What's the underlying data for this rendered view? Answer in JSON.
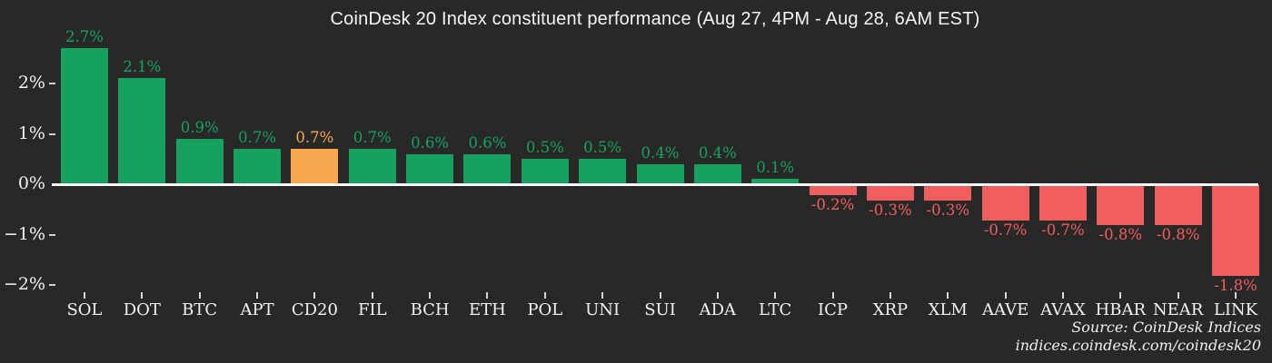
{
  "title": "CoinDesk 20 Index constituent performance (Aug 27, 4PM - Aug 28, 6AM EST)",
  "source": {
    "line1": "Source: CoinDesk Indices",
    "line2": "indices.coindesk.com/coindesk20"
  },
  "colors": {
    "positive": "#16a15e",
    "negative": "#f15e5e",
    "highlight": "#f9a84d",
    "background": "#282828",
    "text": "#f2f2f2",
    "zero_line": "#fafafa"
  },
  "chart_data": {
    "type": "bar",
    "title": "CoinDesk 20 Index constituent performance (Aug 27, 4PM - Aug 28, 6AM EST)",
    "categories": [
      "SOL",
      "DOT",
      "BTC",
      "APT",
      "CD20",
      "FIL",
      "BCH",
      "ETH",
      "POL",
      "UNI",
      "SUI",
      "ADA",
      "LTC",
      "ICP",
      "XRP",
      "XLM",
      "AAVE",
      "AVAX",
      "HBAR",
      "NEAR",
      "LINK"
    ],
    "values": [
      2.7,
      2.1,
      0.9,
      0.7,
      0.7,
      0.7,
      0.6,
      0.6,
      0.5,
      0.5,
      0.4,
      0.4,
      0.1,
      -0.2,
      -0.3,
      -0.3,
      -0.7,
      -0.7,
      -0.8,
      -0.8,
      -1.8
    ],
    "value_labels": [
      "2.7%",
      "2.1%",
      "0.9%",
      "0.7%",
      "0.7%",
      "0.7%",
      "0.6%",
      "0.6%",
      "0.5%",
      "0.5%",
      "0.4%",
      "0.4%",
      "0.1%",
      "-0.2%",
      "-0.3%",
      "-0.3%",
      "-0.7%",
      "-0.7%",
      "-0.8%",
      "-0.8%",
      "-1.8%"
    ],
    "highlight_category": "CD20",
    "y_ticks": [
      {
        "label": "2%",
        "value": 2
      },
      {
        "label": "1%",
        "value": 1
      },
      {
        "label": "0%",
        "value": 0
      },
      {
        "label": "−1%",
        "value": -1
      },
      {
        "label": "−2%",
        "value": -2
      }
    ],
    "ylim": [
      -2.4,
      2.8
    ],
    "xlabel": "",
    "ylabel": "",
    "grid": false,
    "legend": false
  }
}
